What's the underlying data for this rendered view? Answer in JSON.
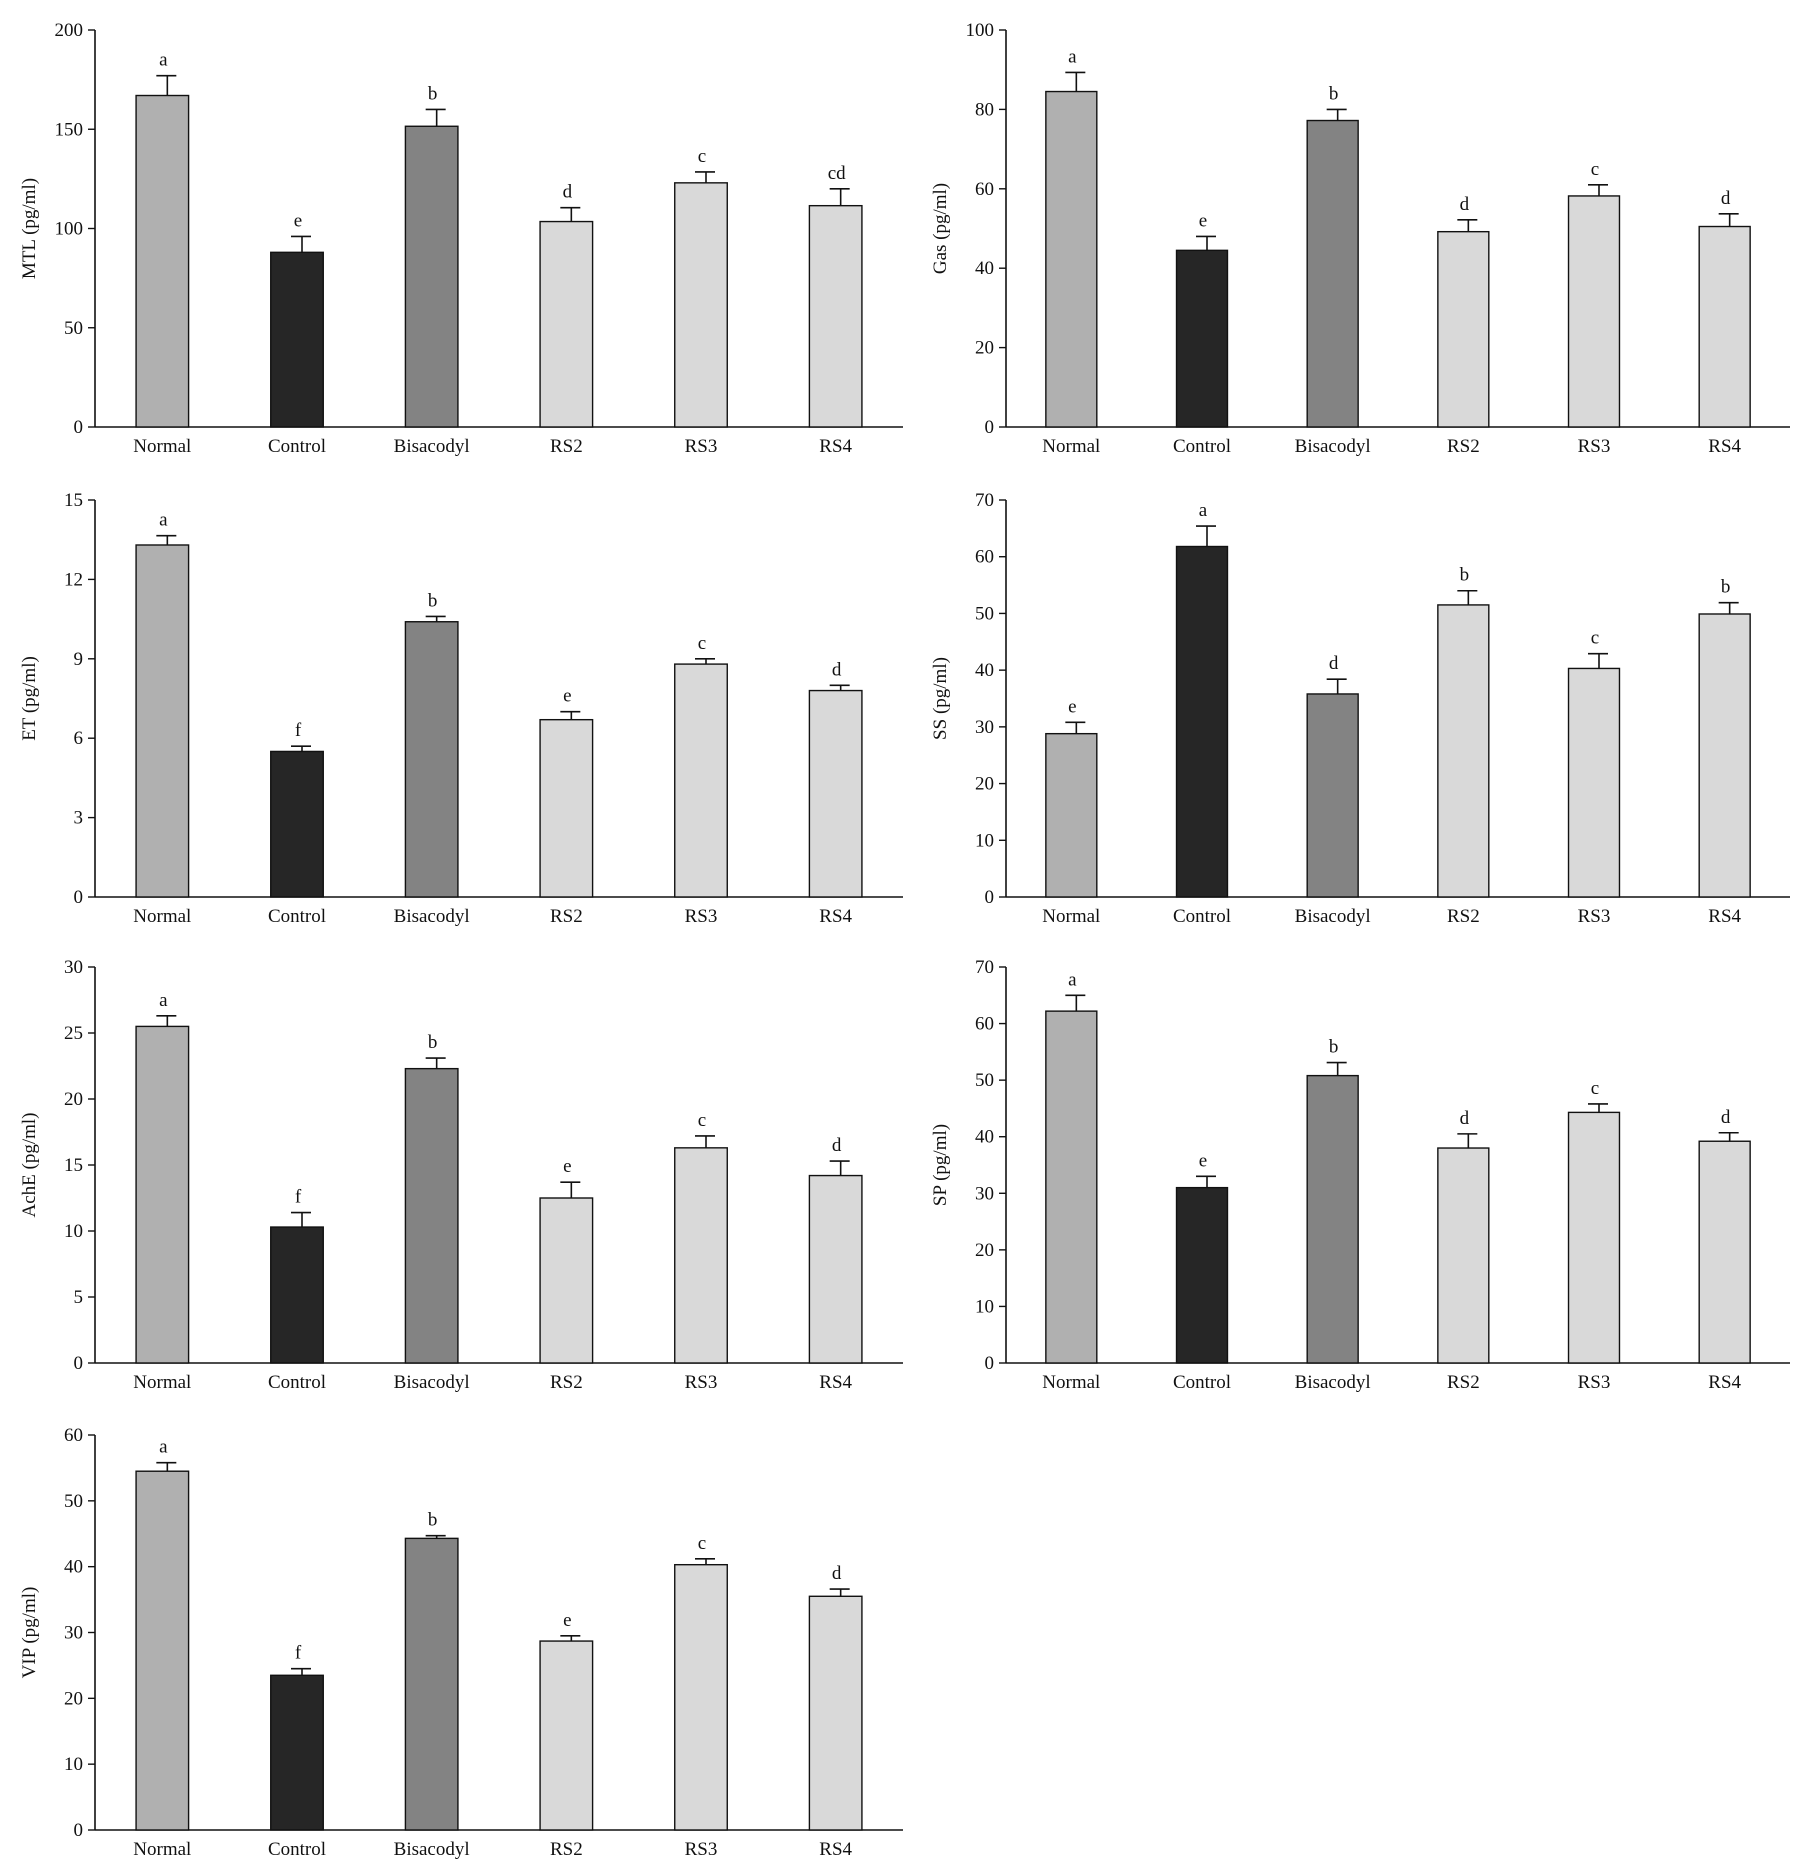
{
  "categories": [
    "Normal",
    "Control",
    "Bisacodyl",
    "RS2",
    "RS3",
    "RS4"
  ],
  "bar_colors": [
    "#b0b0b0",
    "#262626",
    "#838383",
    "#d9d9d9",
    "#d9d9d9",
    "#d9d9d9"
  ],
  "chart_data": [
    {
      "type": "bar",
      "ylabel": "MTL (pg/ml)",
      "ylim": [
        0,
        200
      ],
      "yticks": [
        0,
        50,
        100,
        150,
        200
      ],
      "categories": [
        "Normal",
        "Control",
        "Bisacodyl",
        "RS2",
        "RS3",
        "RS4"
      ],
      "values": [
        167,
        88,
        151.5,
        103.5,
        123,
        111.5
      ],
      "errors": [
        10,
        8,
        8.5,
        7,
        5.5,
        8.5
      ],
      "labels": [
        "a",
        "e",
        "b",
        "d",
        "c",
        "cd"
      ]
    },
    {
      "type": "bar",
      "ylabel": "Gas (pg/ml)",
      "ylim": [
        0,
        100
      ],
      "yticks": [
        0,
        20,
        40,
        60,
        80,
        100
      ],
      "categories": [
        "Normal",
        "Control",
        "Bisacodyl",
        "RS2",
        "RS3",
        "RS4"
      ],
      "values": [
        84.5,
        44.5,
        77.2,
        49.2,
        58.2,
        50.5
      ],
      "errors": [
        4.8,
        3.5,
        2.8,
        3,
        2.8,
        3.2
      ],
      "labels": [
        "a",
        "e",
        "b",
        "d",
        "c",
        "d"
      ]
    },
    {
      "type": "bar",
      "ylabel": "ET (pg/ml)",
      "ylim": [
        0,
        15
      ],
      "yticks": [
        0,
        3,
        6,
        9,
        12,
        15
      ],
      "categories": [
        "Normal",
        "Control",
        "Bisacodyl",
        "RS2",
        "RS3",
        "RS4"
      ],
      "values": [
        13.3,
        5.5,
        10.4,
        6.7,
        8.8,
        7.8
      ],
      "errors": [
        0.35,
        0.2,
        0.2,
        0.3,
        0.2,
        0.2
      ],
      "labels": [
        "a",
        "f",
        "b",
        "e",
        "c",
        "d"
      ]
    },
    {
      "type": "bar",
      "ylabel": "SS (pg/ml)",
      "ylim": [
        0,
        70
      ],
      "yticks": [
        0,
        10,
        20,
        30,
        40,
        50,
        60,
        70
      ],
      "categories": [
        "Normal",
        "Control",
        "Bisacodyl",
        "RS2",
        "RS3",
        "RS4"
      ],
      "values": [
        28.8,
        61.8,
        35.8,
        51.5,
        40.3,
        49.9
      ],
      "errors": [
        2,
        3.6,
        2.6,
        2.5,
        2.6,
        2
      ],
      "labels": [
        "e",
        "a",
        "d",
        "b",
        "c",
        "b"
      ]
    },
    {
      "type": "bar",
      "ylabel": "AchE (pg/ml)",
      "ylim": [
        0,
        30
      ],
      "yticks": [
        0,
        5,
        10,
        15,
        20,
        25,
        30
      ],
      "categories": [
        "Normal",
        "Control",
        "Bisacodyl",
        "RS2",
        "RS3",
        "RS4"
      ],
      "values": [
        25.5,
        10.3,
        22.3,
        12.5,
        16.3,
        14.2
      ],
      "errors": [
        0.8,
        1.1,
        0.8,
        1.2,
        0.9,
        1.1
      ],
      "labels": [
        "a",
        "f",
        "b",
        "e",
        "c",
        "d"
      ]
    },
    {
      "type": "bar",
      "ylabel": "SP (pg/ml)",
      "ylim": [
        0,
        70
      ],
      "yticks": [
        0,
        10,
        20,
        30,
        40,
        50,
        60,
        70
      ],
      "categories": [
        "Normal",
        "Control",
        "Bisacodyl",
        "RS2",
        "RS3",
        "RS4"
      ],
      "values": [
        62.2,
        31,
        50.8,
        38,
        44.3,
        39.2
      ],
      "errors": [
        2.8,
        2,
        2.3,
        2.5,
        1.5,
        1.5
      ],
      "labels": [
        "a",
        "e",
        "b",
        "d",
        "c",
        "d"
      ]
    },
    {
      "type": "bar",
      "ylabel": "VIP (pg/ml)",
      "ylim": [
        0,
        60
      ],
      "yticks": [
        0,
        10,
        20,
        30,
        40,
        50,
        60
      ],
      "categories": [
        "Normal",
        "Control",
        "Bisacodyl",
        "RS2",
        "RS3",
        "RS4"
      ],
      "values": [
        54.5,
        23.5,
        44.3,
        28.7,
        40.3,
        35.5
      ],
      "errors": [
        1.3,
        1,
        0.4,
        0.8,
        0.9,
        1.1
      ],
      "labels": [
        "a",
        "f",
        "b",
        "e",
        "c",
        "d"
      ]
    }
  ]
}
